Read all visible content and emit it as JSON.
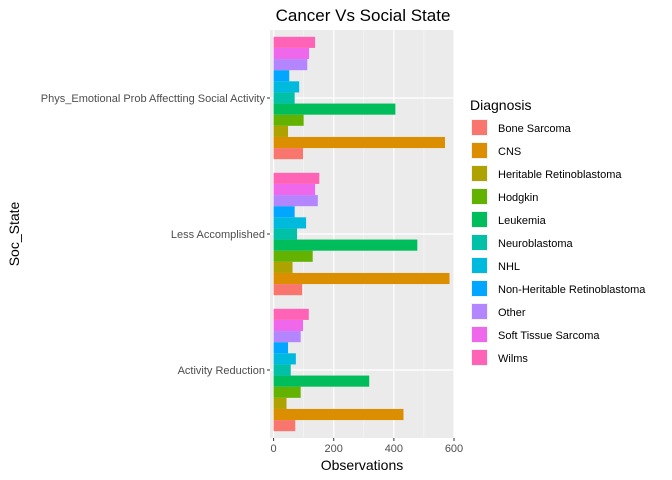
{
  "chart_data": {
    "type": "bar",
    "orientation": "horizontal",
    "title": "Cancer Vs Social State",
    "xlabel": "Observations",
    "ylabel": "Soc_State",
    "xlim": [
      -12,
      600
    ],
    "x_ticks": [
      0,
      200,
      400,
      600
    ],
    "grid": true,
    "legend_title": "Diagnosis",
    "legend_position": "right",
    "categories": [
      "Activity Reduction",
      "Less Accomplished",
      "Phys_Emotional Prob Affectting Social Activity"
    ],
    "series": [
      {
        "name": "Bone Sarcoma",
        "color": "#F8766D",
        "values": [
          72,
          95,
          98
        ]
      },
      {
        "name": "CNS",
        "color": "#DB8E00",
        "values": [
          432,
          585,
          570
        ]
      },
      {
        "name": "Heritable Retinoblastoma",
        "color": "#AEA200",
        "values": [
          43,
          63,
          48
        ]
      },
      {
        "name": "Hodgkin",
        "color": "#64B200",
        "values": [
          90,
          130,
          100
        ]
      },
      {
        "name": "Leukemia",
        "color": "#00BD5C",
        "values": [
          318,
          478,
          405
        ]
      },
      {
        "name": "Neuroblastoma",
        "color": "#00C1A7",
        "values": [
          57,
          78,
          70
        ]
      },
      {
        "name": "NHL",
        "color": "#00BADE",
        "values": [
          74,
          108,
          85
        ]
      },
      {
        "name": "Non-Heritable Retinoblastoma",
        "color": "#00A6FF",
        "values": [
          48,
          70,
          52
        ]
      },
      {
        "name": "Other",
        "color": "#B385FF",
        "values": [
          90,
          147,
          112
        ]
      },
      {
        "name": "Soft Tissue Sarcoma",
        "color": "#EF67EB",
        "values": [
          98,
          138,
          118
        ]
      },
      {
        "name": "Wilms",
        "color": "#FF63B6",
        "values": [
          117,
          152,
          138
        ]
      }
    ]
  }
}
